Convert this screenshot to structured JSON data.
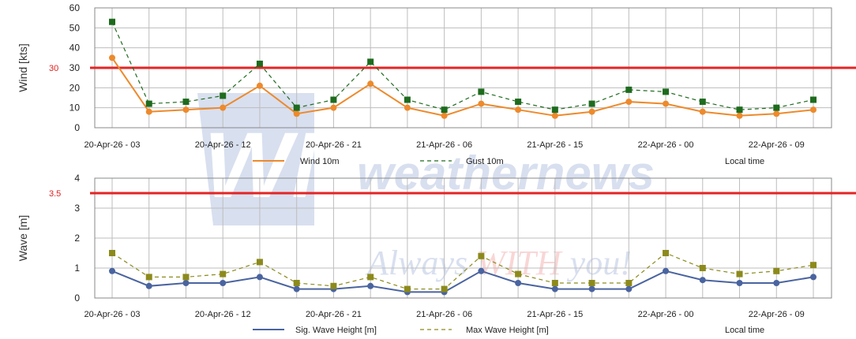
{
  "watermark": {
    "logo": "WN",
    "brand": "weathernews",
    "slogan_1": "Always ",
    "slogan_2": "WITH",
    "slogan_3": " you!"
  },
  "chart_data": [
    {
      "type": "line",
      "ylabel": "Wind [kts]",
      "ylim": [
        0,
        60
      ],
      "yticks": [
        "0",
        "10",
        "20",
        "30",
        "40",
        "50",
        "60"
      ],
      "threshold": 30,
      "threshold_label": "30",
      "xtick_labels": [
        "20-Apr-26 - 03",
        "20-Apr-26 - 12",
        "20-Apr-26 - 21",
        "21-Apr-26 - 06",
        "21-Apr-26 - 15",
        "22-Apr-26 - 00",
        "22-Apr-26 - 09"
      ],
      "grid": true,
      "series": [
        {
          "name": "Wind 10m",
          "values": [
            35,
            8,
            9,
            10,
            21,
            7,
            10,
            22,
            10,
            6,
            12,
            9,
            6,
            8,
            13,
            12,
            8,
            6,
            7,
            9
          ]
        },
        {
          "name": "Gust 10m",
          "values": [
            53,
            12,
            13,
            16,
            32,
            10,
            14,
            33,
            14,
            9,
            18,
            13,
            9,
            12,
            19,
            18,
            13,
            9,
            10,
            14
          ]
        }
      ],
      "legend_extra": "Local time",
      "colors": {
        "wind": "#ed8a2c",
        "gust": "#1e6b1e",
        "threshold": "#e42424"
      }
    },
    {
      "type": "line",
      "ylabel": "Wave [m]",
      "ylim": [
        0,
        4
      ],
      "yticks": [
        "0",
        "1",
        "2",
        "3",
        "4"
      ],
      "threshold": 3.5,
      "threshold_label": "3.5",
      "xtick_labels": [
        "20-Apr-26 - 03",
        "20-Apr-26 - 12",
        "20-Apr-26 - 21",
        "21-Apr-26 - 06",
        "21-Apr-26 - 15",
        "22-Apr-26 - 00",
        "22-Apr-26 - 09"
      ],
      "grid": true,
      "series": [
        {
          "name": "Sig. Wave Height [m]",
          "values": [
            0.9,
            0.4,
            0.5,
            0.5,
            0.7,
            0.3,
            0.3,
            0.4,
            0.2,
            0.2,
            0.9,
            0.5,
            0.3,
            0.3,
            0.3,
            0.9,
            0.6,
            0.5,
            0.5,
            0.7
          ]
        },
        {
          "name": "Max Wave Height [m]",
          "values": [
            1.5,
            0.7,
            0.7,
            0.8,
            1.2,
            0.5,
            0.4,
            0.7,
            0.3,
            0.3,
            1.4,
            0.8,
            0.5,
            0.5,
            0.5,
            1.5,
            1.0,
            0.8,
            0.9,
            1.1
          ]
        }
      ],
      "legend_extra": "Local time",
      "colors": {
        "sig": "#4a64a0",
        "max": "#8c8a1c",
        "threshold": "#e42424"
      }
    }
  ]
}
